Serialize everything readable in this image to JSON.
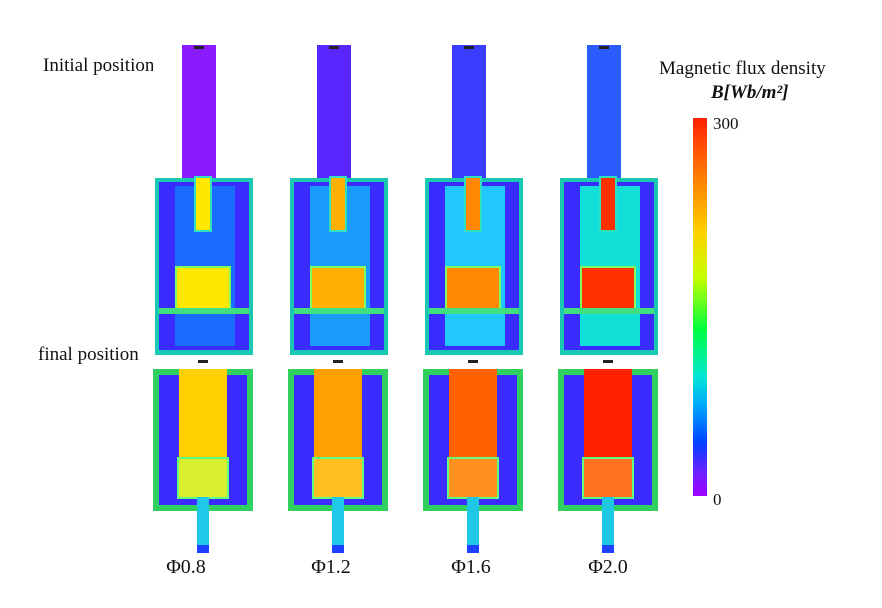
{
  "row_labels": {
    "initial": "Initial position",
    "final": "final position"
  },
  "diameters": [
    "Φ0.8",
    "Φ1.2",
    "Φ1.6",
    "Φ2.0"
  ],
  "legend": {
    "title": "Magnetic flux density",
    "unit": "B[Wb/m²]",
    "max": "300",
    "min": "0"
  },
  "colors": {
    "initial_plunger": [
      "#ffe800",
      "#ffb000",
      "#ff8800",
      "#ff3000"
    ],
    "initial_shaft": [
      "#8a1bff",
      "#5a26ff",
      "#3a3cff",
      "#2a5cff"
    ],
    "initial_core": [
      "#1a6cff",
      "#1a9cff",
      "#20c8ff",
      "#10e0d8"
    ],
    "final_core": [
      "#ffd000",
      "#ffa000",
      "#ff6000",
      "#ff2000"
    ],
    "final_plunger": [
      "#d8ef30",
      "#ffc020",
      "#ff9020",
      "#ff7020"
    ]
  }
}
